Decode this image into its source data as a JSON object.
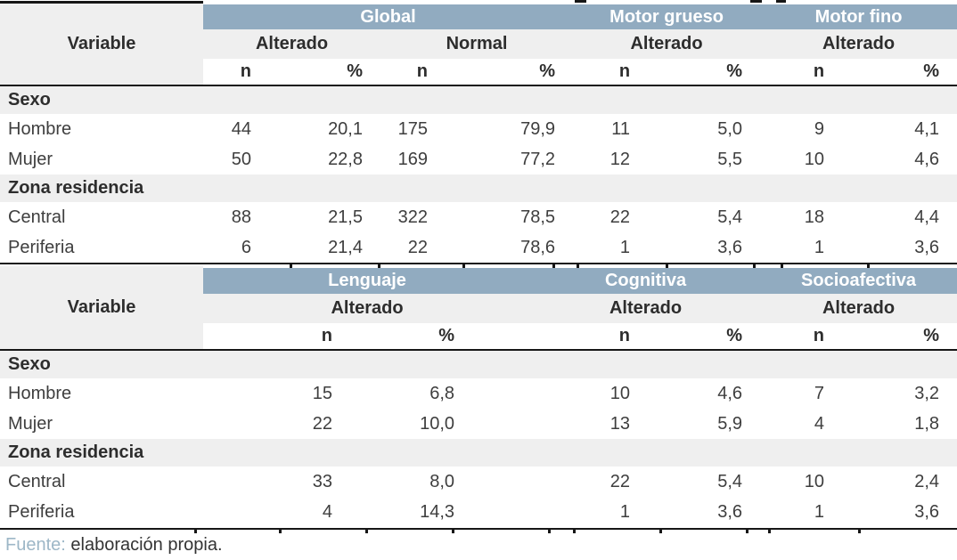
{
  "colors": {
    "band_blue": "#91abc0",
    "header_gray": "#efefef",
    "border_black": "#161616",
    "source_label_blue": "#9db7c7"
  },
  "table1": {
    "variable_label": "Variable",
    "group_headers": [
      "Global",
      "Motor grueso",
      "Motor fino"
    ],
    "subheaders": [
      "Alterado",
      "Normal",
      "Alterado",
      "Alterado"
    ],
    "measure_headers": [
      "n",
      "%",
      "n",
      "%",
      "n",
      "%",
      "n",
      "%"
    ],
    "sections": [
      {
        "label": "Sexo",
        "rows": [
          {
            "label": "Hombre",
            "values": [
              "44",
              "20,1",
              "175",
              "79,9",
              "11",
              "5,0",
              "9",
              "4,1"
            ]
          },
          {
            "label": "Mujer",
            "values": [
              "50",
              "22,8",
              "169",
              "77,2",
              "12",
              "5,5",
              "10",
              "4,6"
            ]
          }
        ]
      },
      {
        "label": "Zona residencia",
        "rows": [
          {
            "label": "Central",
            "values": [
              "88",
              "21,5",
              "322",
              "78,5",
              "22",
              "5,4",
              "18",
              "4,4"
            ]
          },
          {
            "label": "Periferia",
            "values": [
              "6",
              "21,4",
              "22",
              "78,6",
              "1",
              "3,6",
              "1",
              "3,6"
            ]
          }
        ]
      }
    ]
  },
  "table2": {
    "variable_label": "Variable",
    "group_headers": [
      "Lenguaje",
      "Cognitiva",
      "Socioafectiva"
    ],
    "subheaders": [
      "Alterado",
      "Alterado",
      "Alterado"
    ],
    "measure_headers": [
      "n",
      "%",
      "n",
      "%",
      "n",
      "%"
    ],
    "sections": [
      {
        "label": "Sexo",
        "rows": [
          {
            "label": "Hombre",
            "values": [
              "15",
              "6,8",
              "10",
              "4,6",
              "7",
              "3,2"
            ]
          },
          {
            "label": "Mujer",
            "values": [
              "22",
              "10,0",
              "13",
              "5,9",
              "4",
              "1,8"
            ]
          }
        ]
      },
      {
        "label": "Zona residencia",
        "rows": [
          {
            "label": "Central",
            "values": [
              "33",
              "8,0",
              "22",
              "5,4",
              "10",
              "2,4"
            ]
          },
          {
            "label": "Periferia",
            "values": [
              "4",
              "14,3",
              "1",
              "3,6",
              "1",
              "3,6"
            ]
          }
        ]
      }
    ]
  },
  "footer": {
    "source_label": "Fuente:",
    "source_text": "elaboración propia."
  }
}
